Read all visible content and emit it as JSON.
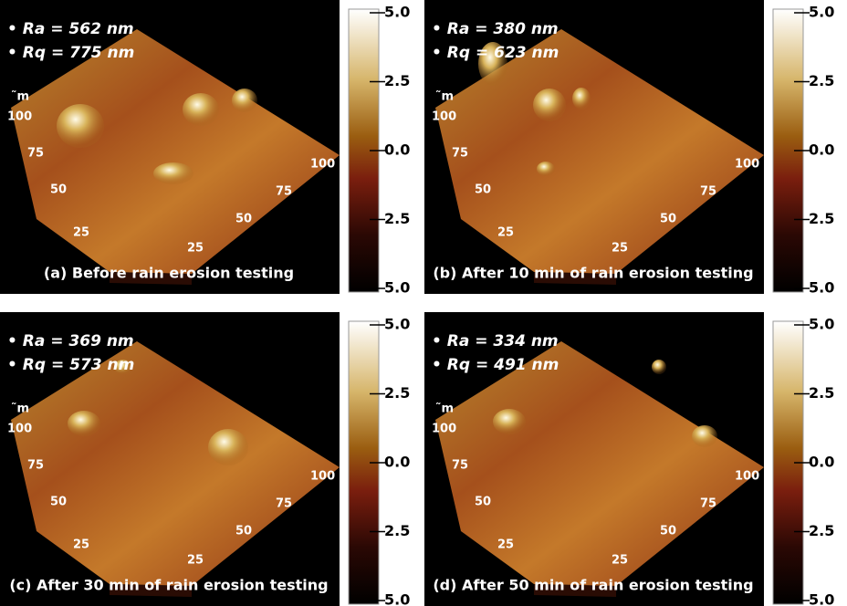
{
  "panels": [
    {
      "ra": "• Ra = 562 nm",
      "rq": "• Rq = 775 nm",
      "caption": "(a) Before rain erosion testing",
      "y_unit": "˜m",
      "x_unit": "m",
      "y_ticks": [
        "100",
        "75",
        "50",
        "25"
      ],
      "x_ticks": [
        "25",
        "50",
        "75",
        "100"
      ],
      "colorbar_ticks": [
        "5.0",
        "2.5",
        "0.0",
        "2.5",
        "5.0"
      ]
    },
    {
      "ra": "• Ra = 380 nm",
      "rq": "• Rq = 623 nm",
      "caption": "(b) After 10 min of rain erosion testing",
      "y_unit": "˜m",
      "x_unit": "m",
      "y_ticks": [
        "100",
        "75",
        "50",
        "25"
      ],
      "x_ticks": [
        "25",
        "50",
        "75",
        "100"
      ],
      "colorbar_ticks": [
        "5.0",
        "2.5",
        "0.0",
        "2.5",
        "5.0"
      ]
    },
    {
      "ra": "• Ra = 369 nm",
      "rq": "• Rq = 573 nm",
      "caption": "(c) After 30 min of rain erosion testing",
      "y_unit": "˜m",
      "x_unit": "m",
      "y_ticks": [
        "100",
        "75",
        "50",
        "25"
      ],
      "x_ticks": [
        "25",
        "50",
        "75",
        "100"
      ],
      "colorbar_ticks": [
        "5.0",
        "2.5",
        "0.0",
        "2.5",
        "5.0"
      ]
    },
    {
      "ra": "• Ra = 334 nm",
      "rq": "• Rq = 491 nm",
      "caption": "(d) After 50 min of rain erosion testing",
      "y_unit": "˜m",
      "x_unit": "m",
      "y_ticks": [
        "100",
        "75",
        "50",
        "25"
      ],
      "x_ticks": [
        "25",
        "50",
        "75",
        "100"
      ],
      "colorbar_ticks": [
        "5.0",
        "2.5",
        "0.0",
        "2.5",
        "5.0"
      ]
    }
  ]
}
